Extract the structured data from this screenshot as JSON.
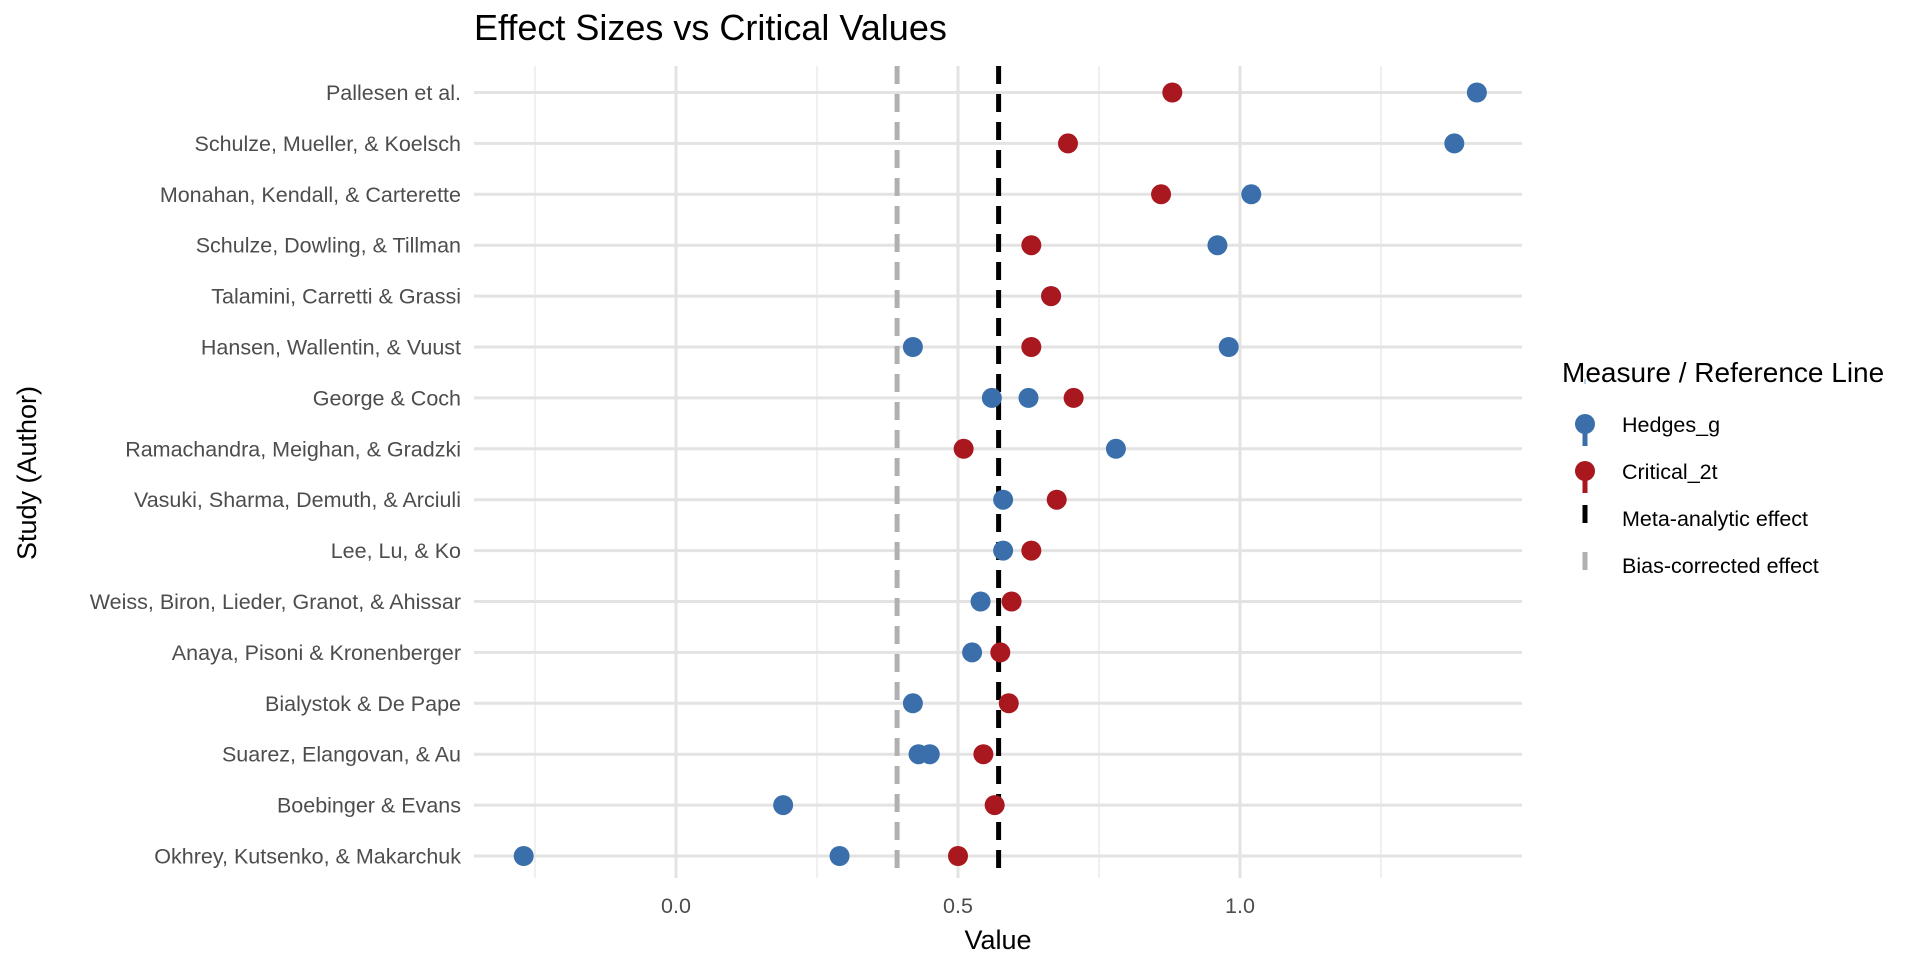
{
  "chart_data": {
    "type": "scatter",
    "title": "Effect Sizes vs Critical Values",
    "xlabel": "Value",
    "ylabel": "Study (Author)",
    "xlim": [
      -0.3,
      1.505
    ],
    "x_ticks": [
      0.0,
      0.5,
      1.0
    ],
    "x_tick_labels": [
      "0.0",
      "0.5",
      "1.0"
    ],
    "grid": true,
    "legend_position": "right",
    "legend_title": "Measure / Reference Line",
    "legend": [
      {
        "label": "Hedges_g",
        "kind": "point",
        "color": "#3a6fab"
      },
      {
        "label": "Critical_2t",
        "kind": "point",
        "color": "#a9171f"
      },
      {
        "label": "Meta-analytic effect",
        "kind": "dashed-line",
        "color": "#000000"
      },
      {
        "label": "Bias-corrected effect",
        "kind": "dashed-line",
        "color": "#b0b0b0"
      }
    ],
    "categories": [
      "Pallesen et al.",
      "Schulze, Mueller, & Koelsch",
      "Monahan, Kendall, & Carterette",
      "Schulze, Dowling, & Tillman",
      "Talamini, Carretti & Grassi",
      "Hansen, Wallentin, & Vuust",
      "George & Coch",
      "Ramachandra, Meighan, & Gradzki",
      "Vasuki, Sharma, Demuth, & Arciuli",
      "Lee, Lu, & Ko",
      "Weiss, Biron, Lieder, Granot, & Ahissar",
      "Anaya, Pisoni & Kronenberger",
      "Bialystok & De Pape",
      "Suarez, Elangovan, & Au",
      "Boebinger & Evans",
      "Okhrey, Kutsenko, & Makarchuk"
    ],
    "series": [
      {
        "name": "Hedges_g",
        "color": "#3a6fab",
        "points": [
          {
            "study": "Pallesen et al.",
            "x": 1.42
          },
          {
            "study": "Schulze, Mueller, & Koelsch",
            "x": 1.38
          },
          {
            "study": "Monahan, Kendall, & Carterette",
            "x": 1.02
          },
          {
            "study": "Schulze, Dowling, & Tillman",
            "x": 0.96
          },
          {
            "study": "Talamini, Carretti & Grassi",
            "x": 0.665
          },
          {
            "study": "Hansen, Wallentin, & Vuust",
            "x": 0.42
          },
          {
            "study": "Hansen, Wallentin, & Vuust",
            "x": 0.98
          },
          {
            "study": "George & Coch",
            "x": 0.56
          },
          {
            "study": "George & Coch",
            "x": 0.625
          },
          {
            "study": "Ramachandra, Meighan, & Gradzki",
            "x": 0.78
          },
          {
            "study": "Vasuki, Sharma, Demuth, & Arciuli",
            "x": 0.58
          },
          {
            "study": "Lee, Lu, & Ko",
            "x": 0.58
          },
          {
            "study": "Weiss, Biron, Lieder, Granot, & Ahissar",
            "x": 0.54
          },
          {
            "study": "Anaya, Pisoni & Kronenberger",
            "x": 0.525
          },
          {
            "study": "Bialystok & De Pape",
            "x": 0.42
          },
          {
            "study": "Suarez, Elangovan, & Au",
            "x": 0.43
          },
          {
            "study": "Suarez, Elangovan, & Au",
            "x": 0.45
          },
          {
            "study": "Boebinger & Evans",
            "x": 0.19
          },
          {
            "study": "Okhrey, Kutsenko, & Makarchuk",
            "x": -0.27
          },
          {
            "study": "Okhrey, Kutsenko, & Makarchuk",
            "x": 0.29
          }
        ]
      },
      {
        "name": "Critical_2t",
        "color": "#a9171f",
        "points": [
          {
            "study": "Pallesen et al.",
            "x": 0.88
          },
          {
            "study": "Schulze, Mueller, & Koelsch",
            "x": 0.695
          },
          {
            "study": "Monahan, Kendall, & Carterette",
            "x": 0.86
          },
          {
            "study": "Schulze, Dowling, & Tillman",
            "x": 0.63
          },
          {
            "study": "Talamini, Carretti & Grassi",
            "x": 0.665
          },
          {
            "study": "Hansen, Wallentin, & Vuust",
            "x": 0.63
          },
          {
            "study": "George & Coch",
            "x": 0.705
          },
          {
            "study": "Ramachandra, Meighan, & Gradzki",
            "x": 0.51
          },
          {
            "study": "Vasuki, Sharma, Demuth, & Arciuli",
            "x": 0.675
          },
          {
            "study": "Lee, Lu, & Ko",
            "x": 0.63
          },
          {
            "study": "Weiss, Biron, Lieder, Granot, & Ahissar",
            "x": 0.595
          },
          {
            "study": "Anaya, Pisoni & Kronenberger",
            "x": 0.575
          },
          {
            "study": "Bialystok & De Pape",
            "x": 0.59
          },
          {
            "study": "Suarez, Elangovan, & Au",
            "x": 0.545
          },
          {
            "study": "Boebinger & Evans",
            "x": 0.565
          },
          {
            "study": "Okhrey, Kutsenko, & Makarchuk",
            "x": 0.5
          }
        ]
      }
    ],
    "reference_lines": [
      {
        "name": "Meta-analytic effect",
        "x": 0.572,
        "color": "#000000",
        "dashed": true
      },
      {
        "name": "Bias-corrected effect",
        "x": 0.392,
        "color": "#b0b0b0",
        "dashed": true
      }
    ]
  }
}
